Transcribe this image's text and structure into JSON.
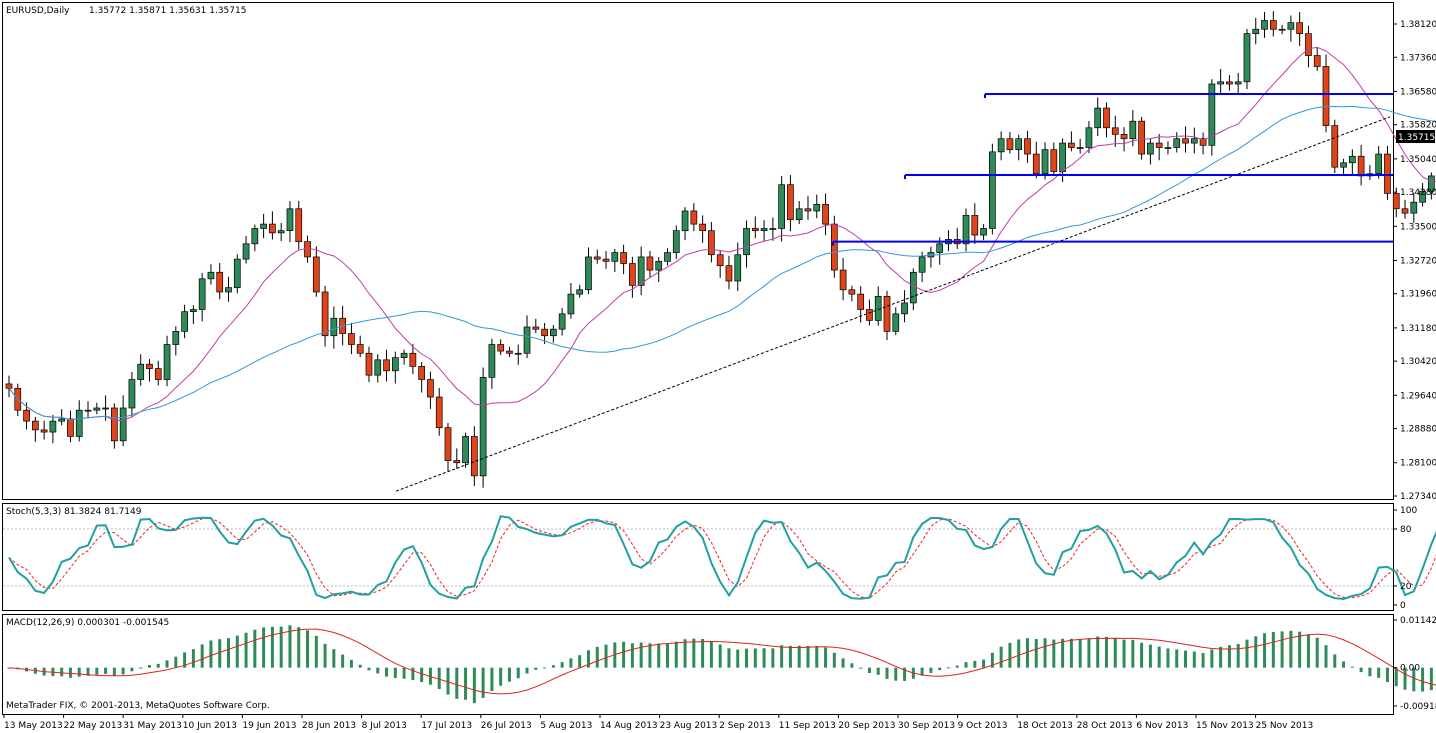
{
  "header": {
    "symbol": "EURUSD,Daily",
    "ohlc": "1.35772 1.35871 1.35631 1.35715"
  },
  "price_tag": "1.35715",
  "credit": "MetaTrader FIX, © 2001-2013, MetaQuotes Software Corp.",
  "colors": {
    "bull": "#2e8b57",
    "bear": "#e2441a",
    "ma_fast": "#c03ea6",
    "ma_slow": "#2e9bd6",
    "level": "#0000ee",
    "stoch_main": "#20a0a0",
    "stoch_signal": "#ee2222",
    "macd_hist": "#2e8b57",
    "macd_signal": "#dd2222"
  },
  "chart_data": [
    {
      "type": "candlestick",
      "symbol": "EURUSD",
      "timeframe": "Daily",
      "ylim": [
        1.2734,
        1.3846
      ],
      "y_ticks": [
        "1.38120",
        "1.37360",
        "1.36580",
        "1.35820",
        "1.35040",
        "1.34280",
        "1.33500",
        "1.32720",
        "1.31960",
        "1.31180",
        "1.30420",
        "1.29640",
        "1.28880",
        "1.28100",
        "1.27340"
      ],
      "x_ticks": [
        "13 May 2013",
        "22 May 2013",
        "31 May 2013",
        "10 Jun 2013",
        "19 Jun 2013",
        "28 Jun 2013",
        "8 Jul 2013",
        "17 Jul 2013",
        "26 Jul 2013",
        "5 Aug 2013",
        "14 Aug 2013",
        "23 Aug 2013",
        "2 Sep 2013",
        "11 Sep 2013",
        "20 Sep 2013",
        "30 Sep 2013",
        "9 Oct 2013",
        "18 Oct 2013",
        "28 Oct 2013",
        "6 Nov 2013",
        "15 Nov 2013",
        "25 Nov 2013"
      ],
      "close": [
        1.298,
        1.293,
        1.2905,
        1.2885,
        1.288,
        1.2905,
        1.291,
        1.287,
        1.293,
        1.293,
        1.2935,
        1.2935,
        1.286,
        1.2935,
        1.3,
        1.3035,
        1.3025,
        1.3,
        1.308,
        1.311,
        1.3155,
        1.316,
        1.323,
        1.3245,
        1.32,
        1.321,
        1.3275,
        1.331,
        1.3345,
        1.3355,
        1.3335,
        1.334,
        1.339,
        1.3315,
        1.328,
        1.32,
        1.31,
        1.314,
        1.3105,
        1.308,
        1.306,
        1.301,
        1.3045,
        1.302,
        1.305,
        1.306,
        1.303,
        1.3,
        1.296,
        1.289,
        1.2815,
        1.281,
        1.287,
        1.278,
        1.3005,
        1.308,
        1.3065,
        1.306,
        1.306,
        1.312,
        1.3115,
        1.31,
        1.3115,
        1.315,
        1.3195,
        1.3205,
        1.328,
        1.3275,
        1.327,
        1.329,
        1.3265,
        1.3215,
        1.328,
        1.325,
        1.327,
        1.329,
        1.334,
        1.3385,
        1.3355,
        1.334,
        1.3285,
        1.326,
        1.3225,
        1.3285,
        1.3345,
        1.334,
        1.3345,
        1.3345,
        1.3445,
        1.3365,
        1.339,
        1.3385,
        1.34,
        1.3355,
        1.325,
        1.3205,
        1.3195,
        1.316,
        1.3135,
        1.319,
        1.311,
        1.315,
        1.3175,
        1.3245,
        1.328,
        1.329,
        1.331,
        1.332,
        1.331,
        1.3375,
        1.333,
        1.3345,
        1.352,
        1.355,
        1.3525,
        1.355,
        1.3515,
        1.347,
        1.3525,
        1.3475,
        1.354,
        1.353,
        1.353,
        1.3575,
        1.362,
        1.3575,
        1.356,
        1.355,
        1.359,
        1.3515,
        1.354,
        1.353,
        1.353,
        1.355,
        1.354,
        1.355,
        1.3535,
        1.3675,
        1.368,
        1.3675,
        1.368,
        1.379,
        1.38,
        1.382,
        1.38,
        1.38,
        1.3815,
        1.379,
        1.374,
        1.3715,
        1.358,
        1.3485,
        1.3495,
        1.351,
        1.3465,
        1.347,
        1.3515,
        1.3425,
        1.339,
        1.338,
        1.3405,
        1.343,
        1.3465,
        1.3485,
        1.347,
        1.3485,
        1.35,
        1.3555,
        1.3455,
        1.3475,
        1.3555,
        1.356,
        1.353,
        1.3565,
        1.3575,
        1.3572
      ],
      "horizontal_levels": [
        1.3652,
        1.3467,
        1.3315
      ],
      "indicators": [
        "Moving Average (fast)",
        "Moving Average (slow)",
        "Trendline"
      ]
    },
    {
      "type": "line",
      "title": "Stoch(5,3,3) 81.3824 81.7149",
      "ylim": [
        0,
        100
      ],
      "y_ticks": [
        "100",
        "80",
        "20",
        "0"
      ],
      "levels": [
        20,
        80
      ]
    },
    {
      "type": "bar",
      "title": "MACD(12,26,9) 0.000301 -0.001545",
      "ylim": [
        -0.009187,
        0.011426
      ],
      "y_ticks": [
        "0.011426",
        "0.00",
        "-0.009187"
      ]
    }
  ]
}
